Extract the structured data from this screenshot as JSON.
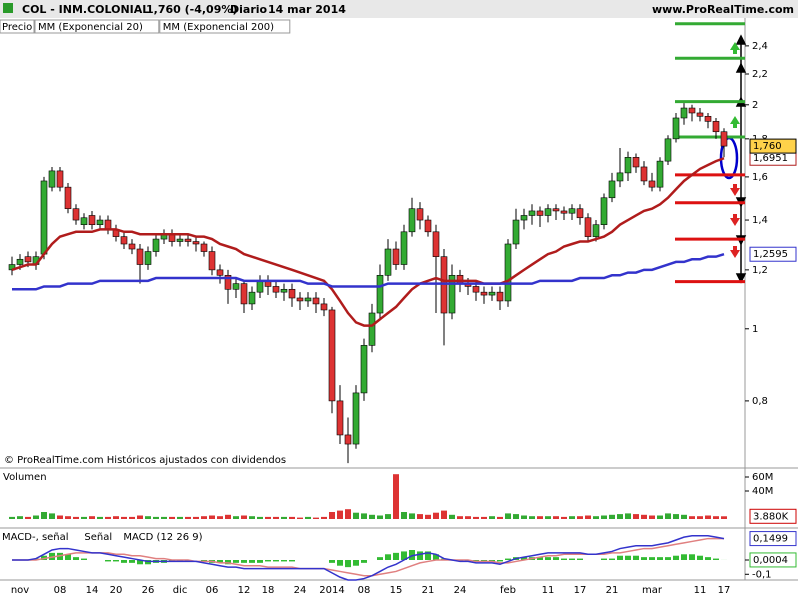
{
  "header": {
    "symbol": "COL - INM.COLONIAL",
    "quote": "1,760 (-4,09%)",
    "period": "Diario",
    "date": "14 mar 2014",
    "site": "www.ProRealTime.com",
    "footer": "© ProRealTime.com Históricos ajustados con dividendos"
  },
  "chart_data": [
    {
      "type": "candlestick",
      "log_scale": true,
      "ylim": [
        0.65,
        2.6
      ],
      "yticks": [
        {
          "value": 0.8,
          "label": "0,8"
        },
        1,
        {
          "value": 1.2,
          "label": "1,2"
        },
        {
          "value": 1.4,
          "label": "1,4"
        },
        {
          "value": 1.6,
          "label": "1,6"
        },
        {
          "value": 1.8,
          "label": "1,8"
        },
        2,
        {
          "value": 2.2,
          "label": "2,2"
        },
        {
          "value": 2.4,
          "label": "2,4"
        }
      ],
      "categories": [
        null,
        "nov",
        null,
        null,
        null,
        null,
        "08",
        null,
        null,
        null,
        "14",
        null,
        null,
        "20",
        null,
        null,
        null,
        "26",
        null,
        null,
        null,
        "dic",
        null,
        null,
        null,
        "06",
        null,
        null,
        null,
        "12",
        null,
        null,
        "18",
        null,
        null,
        null,
        "24",
        null,
        null,
        null,
        "2014",
        null,
        null,
        null,
        "08",
        null,
        null,
        null,
        "15",
        null,
        null,
        null,
        "21",
        null,
        null,
        null,
        "24",
        null,
        null,
        null,
        null,
        null,
        "feb",
        null,
        null,
        null,
        null,
        "11",
        null,
        null,
        null,
        "17",
        null,
        null,
        null,
        "21",
        null,
        null,
        null,
        null,
        "mar",
        null,
        null,
        null,
        null,
        null,
        "11",
        null,
        null,
        "17"
      ],
      "candles": {
        "name": "Precio",
        "up_color": "#33aa33",
        "down_color": "#dd3333",
        "last_label": "1,760",
        "open": [
          1.2,
          1.22,
          1.25,
          1.22,
          1.26,
          1.55,
          1.63,
          1.55,
          1.45,
          1.38,
          1.42,
          1.38,
          1.4,
          1.36,
          1.33,
          1.3,
          1.28,
          1.22,
          1.27,
          1.32,
          1.34,
          1.31,
          1.32,
          1.31,
          1.3,
          1.27,
          1.2,
          1.18,
          1.13,
          1.15,
          1.08,
          1.12,
          1.16,
          1.14,
          1.12,
          1.13,
          1.1,
          1.09,
          1.1,
          1.08,
          1.06,
          0.8,
          0.72,
          0.7,
          0.82,
          0.95,
          1.05,
          1.18,
          1.28,
          1.22,
          1.35,
          1.45,
          1.4,
          1.35,
          1.25,
          1.05,
          1.18,
          1.15,
          1.14,
          1.12,
          1.11,
          1.12,
          1.09,
          1.3,
          1.4,
          1.42,
          1.44,
          1.42,
          1.45,
          1.44,
          1.43,
          1.45,
          1.41,
          1.33,
          1.38,
          1.5,
          1.58,
          1.62,
          1.7,
          1.65,
          1.58,
          1.55,
          1.68,
          1.8,
          1.92,
          1.98,
          1.95,
          1.93,
          1.9,
          1.84
        ],
        "high": [
          1.25,
          1.26,
          1.27,
          1.27,
          1.6,
          1.65,
          1.65,
          1.57,
          1.47,
          1.43,
          1.44,
          1.42,
          1.42,
          1.38,
          1.35,
          1.32,
          1.3,
          1.29,
          1.34,
          1.36,
          1.36,
          1.34,
          1.34,
          1.33,
          1.31,
          1.29,
          1.22,
          1.2,
          1.17,
          1.16,
          1.14,
          1.18,
          1.18,
          1.16,
          1.15,
          1.15,
          1.12,
          1.12,
          1.12,
          1.1,
          1.07,
          0.84,
          0.76,
          0.84,
          0.97,
          1.08,
          1.22,
          1.32,
          1.31,
          1.38,
          1.5,
          1.48,
          1.42,
          1.38,
          1.28,
          1.22,
          1.2,
          1.17,
          1.16,
          1.14,
          1.14,
          1.14,
          1.32,
          1.45,
          1.45,
          1.47,
          1.46,
          1.47,
          1.47,
          1.46,
          1.47,
          1.47,
          1.43,
          1.4,
          1.52,
          1.62,
          1.75,
          1.73,
          1.72,
          1.68,
          1.62,
          1.7,
          1.82,
          1.95,
          2.01,
          2.0,
          1.98,
          1.95,
          1.92,
          1.86
        ],
        "low": [
          1.18,
          1.2,
          1.21,
          1.2,
          1.24,
          1.53,
          1.53,
          1.43,
          1.38,
          1.36,
          1.36,
          1.36,
          1.34,
          1.31,
          1.28,
          1.26,
          1.15,
          1.2,
          1.25,
          1.3,
          1.29,
          1.29,
          1.29,
          1.27,
          1.25,
          1.18,
          1.15,
          1.08,
          1.1,
          1.05,
          1.06,
          1.1,
          1.11,
          1.1,
          1.09,
          1.07,
          1.06,
          1.07,
          1.05,
          1.04,
          0.77,
          0.7,
          0.66,
          0.69,
          0.8,
          0.93,
          1.03,
          1.16,
          1.2,
          1.2,
          1.33,
          1.36,
          1.33,
          1.05,
          0.95,
          1.03,
          1.12,
          1.11,
          1.09,
          1.08,
          1.09,
          1.06,
          1.07,
          1.28,
          1.36,
          1.38,
          1.37,
          1.39,
          1.4,
          1.4,
          1.4,
          1.38,
          1.31,
          1.31,
          1.36,
          1.48,
          1.55,
          1.58,
          1.62,
          1.56,
          1.53,
          1.53,
          1.66,
          1.78,
          1.88,
          1.9,
          1.9,
          1.86,
          1.8,
          1.7
        ],
        "close": [
          1.22,
          1.24,
          1.23,
          1.25,
          1.58,
          1.63,
          1.55,
          1.45,
          1.4,
          1.41,
          1.38,
          1.4,
          1.36,
          1.33,
          1.3,
          1.28,
          1.22,
          1.27,
          1.32,
          1.34,
          1.31,
          1.32,
          1.31,
          1.3,
          1.27,
          1.2,
          1.18,
          1.13,
          1.15,
          1.08,
          1.12,
          1.16,
          1.14,
          1.12,
          1.13,
          1.1,
          1.09,
          1.1,
          1.08,
          1.06,
          0.8,
          0.72,
          0.7,
          0.82,
          0.95,
          1.05,
          1.18,
          1.28,
          1.22,
          1.35,
          1.45,
          1.4,
          1.35,
          1.25,
          1.05,
          1.18,
          1.15,
          1.14,
          1.12,
          1.11,
          1.12,
          1.09,
          1.3,
          1.4,
          1.42,
          1.44,
          1.42,
          1.45,
          1.44,
          1.43,
          1.45,
          1.41,
          1.33,
          1.38,
          1.5,
          1.58,
          1.62,
          1.7,
          1.65,
          1.58,
          1.55,
          1.68,
          1.8,
          1.92,
          1.98,
          1.95,
          1.93,
          1.9,
          1.84,
          1.76
        ]
      },
      "series": [
        {
          "name": "MM (Exponencial 20)",
          "color": "#b01c1c",
          "last_label": "1,6951",
          "values": [
            1.2,
            1.21,
            1.22,
            1.22,
            1.26,
            1.3,
            1.33,
            1.34,
            1.35,
            1.35,
            1.35,
            1.36,
            1.36,
            1.36,
            1.35,
            1.35,
            1.34,
            1.34,
            1.34,
            1.34,
            1.34,
            1.34,
            1.34,
            1.33,
            1.33,
            1.32,
            1.3,
            1.29,
            1.28,
            1.26,
            1.25,
            1.24,
            1.23,
            1.22,
            1.21,
            1.2,
            1.19,
            1.18,
            1.17,
            1.16,
            1.13,
            1.09,
            1.05,
            1.02,
            1.01,
            1.01,
            1.03,
            1.05,
            1.07,
            1.1,
            1.13,
            1.15,
            1.16,
            1.17,
            1.16,
            1.16,
            1.16,
            1.16,
            1.16,
            1.15,
            1.15,
            1.15,
            1.16,
            1.18,
            1.2,
            1.22,
            1.24,
            1.26,
            1.27,
            1.29,
            1.3,
            1.31,
            1.31,
            1.32,
            1.33,
            1.35,
            1.38,
            1.4,
            1.42,
            1.44,
            1.45,
            1.47,
            1.5,
            1.54,
            1.58,
            1.61,
            1.64,
            1.66,
            1.68,
            1.6951
          ]
        },
        {
          "name": "MM (Exponencial 200)",
          "color": "#3333cc",
          "last_label": "1,2595",
          "values": [
            1.13,
            1.13,
            1.13,
            1.13,
            1.14,
            1.14,
            1.14,
            1.15,
            1.15,
            1.15,
            1.15,
            1.16,
            1.16,
            1.16,
            1.16,
            1.16,
            1.16,
            1.16,
            1.17,
            1.17,
            1.17,
            1.17,
            1.17,
            1.17,
            1.17,
            1.17,
            1.17,
            1.17,
            1.17,
            1.16,
            1.16,
            1.16,
            1.16,
            1.16,
            1.16,
            1.16,
            1.16,
            1.15,
            1.15,
            1.15,
            1.14,
            1.14,
            1.14,
            1.14,
            1.14,
            1.14,
            1.14,
            1.15,
            1.15,
            1.15,
            1.15,
            1.15,
            1.15,
            1.15,
            1.15,
            1.15,
            1.15,
            1.15,
            1.15,
            1.15,
            1.15,
            1.15,
            1.15,
            1.15,
            1.15,
            1.15,
            1.16,
            1.16,
            1.16,
            1.16,
            1.16,
            1.17,
            1.17,
            1.17,
            1.17,
            1.18,
            1.18,
            1.19,
            1.19,
            1.2,
            1.2,
            1.21,
            1.22,
            1.23,
            1.23,
            1.24,
            1.24,
            1.25,
            1.25,
            1.2595
          ]
        }
      ],
      "levels": {
        "values": [
          2.57,
          2.31,
          2.02,
          1.81,
          1.61,
          1.477,
          1.32,
          1.157
        ],
        "colors": [
          "#33aa33",
          "#33aa33",
          "#33aa33",
          "#33aa33",
          "#dd1111",
          "#dd1111",
          "#dd1111",
          "#dd1111"
        ]
      }
    },
    {
      "type": "bar",
      "title": "Volumen",
      "ylim": [
        -10,
        70
      ],
      "yticks": [
        {
          "value": 60,
          "label": "60M"
        },
        {
          "value": 40,
          "label": "40M"
        }
      ],
      "up_color": "#33aa33",
      "down_color": "#dd3333",
      "last_label": "3.880K",
      "values": [
        3,
        4,
        3,
        5,
        10,
        8,
        5,
        4,
        3,
        3,
        4,
        3,
        3,
        4,
        3,
        3,
        5,
        4,
        3,
        3,
        3,
        3,
        3,
        3,
        4,
        5,
        4,
        6,
        4,
        5,
        4,
        3,
        3,
        3,
        3,
        3,
        2,
        3,
        2,
        3,
        10,
        12,
        14,
        9,
        8,
        6,
        5,
        7,
        64,
        10,
        8,
        7,
        6,
        9,
        12,
        6,
        4,
        4,
        3,
        3,
        4,
        3,
        8,
        7,
        5,
        4,
        4,
        4,
        4,
        3,
        4,
        4,
        5,
        4,
        5,
        6,
        7,
        8,
        7,
        6,
        5,
        5,
        8,
        7,
        6,
        4,
        4,
        5,
        4,
        3.88
      ]
    },
    {
      "type": "macd",
      "ylim": [
        -0.14,
        0.21
      ],
      "yticks": [
        0,
        {
          "value": -0.1,
          "label": "-0,1"
        }
      ],
      "series": [
        {
          "name": "MACD-, señal",
          "kind": "histogram",
          "color": "#33bb33",
          "last_label": "0,0004",
          "values": [
            0,
            0,
            0,
            0.01,
            0.03,
            0.05,
            0.05,
            0.04,
            0.02,
            0.01,
            0,
            0,
            -0.01,
            -0.01,
            -0.02,
            -0.02,
            -0.03,
            -0.03,
            -0.02,
            -0.02,
            -0.01,
            -0.01,
            -0.01,
            0,
            -0.01,
            -0.02,
            -0.02,
            -0.03,
            -0.02,
            -0.02,
            -0.02,
            -0.02,
            -0.01,
            -0.01,
            -0.01,
            -0.01,
            0,
            0,
            0,
            0,
            -0.02,
            -0.04,
            -0.05,
            -0.04,
            -0.02,
            0,
            0.02,
            0.04,
            0.05,
            0.06,
            0.07,
            0.06,
            0.06,
            0.04,
            0.01,
            0,
            -0.01,
            -0.01,
            -0.01,
            -0.01,
            -0.01,
            -0.01,
            0.01,
            0.02,
            0.02,
            0.02,
            0.02,
            0.02,
            0.02,
            0.01,
            0.01,
            0.01,
            0,
            0,
            0.01,
            0.01,
            0.03,
            0.03,
            0.03,
            0.02,
            0.02,
            0.02,
            0.02,
            0.03,
            0.04,
            0.04,
            0.03,
            0.02,
            0.01,
            0.0004
          ]
        },
        {
          "name": "Señal",
          "kind": "line",
          "color": "#e08080",
          "values": [
            0,
            0,
            0,
            0,
            0.01,
            0.02,
            0.03,
            0.04,
            0.05,
            0.05,
            0.05,
            0.05,
            0.05,
            0.04,
            0.04,
            0.03,
            0.03,
            0.02,
            0.01,
            0.01,
            0,
            0,
            0,
            -0.01,
            -0.01,
            -0.01,
            -0.02,
            -0.02,
            -0.03,
            -0.04,
            -0.04,
            -0.04,
            -0.05,
            -0.05,
            -0.05,
            -0.05,
            -0.06,
            -0.06,
            -0.06,
            -0.06,
            -0.07,
            -0.08,
            -0.09,
            -0.1,
            -0.11,
            -0.11,
            -0.1,
            -0.09,
            -0.08,
            -0.06,
            -0.04,
            -0.02,
            -0.01,
            0,
            0,
            0,
            0,
            0,
            -0.01,
            -0.01,
            -0.01,
            -0.02,
            -0.02,
            -0.01,
            0,
            0.01,
            0.02,
            0.03,
            0.03,
            0.04,
            0.04,
            0.04,
            0.04,
            0.04,
            0.04,
            0.05,
            0.05,
            0.06,
            0.07,
            0.08,
            0.08,
            0.09,
            0.1,
            0.11,
            0.12,
            0.13,
            0.14,
            0.15,
            0.15,
            0.1495
          ]
        },
        {
          "name": "MACD (12 26 9)",
          "kind": "line",
          "color": "#3333cc",
          "last_label": "0,1499",
          "values": [
            0,
            0,
            0,
            0.01,
            0.04,
            0.07,
            0.08,
            0.08,
            0.07,
            0.06,
            0.05,
            0.05,
            0.04,
            0.03,
            0.02,
            0.01,
            0,
            -0.01,
            -0.01,
            -0.01,
            -0.01,
            -0.01,
            -0.01,
            -0.01,
            -0.02,
            -0.03,
            -0.04,
            -0.05,
            -0.05,
            -0.06,
            -0.06,
            -0.06,
            -0.06,
            -0.06,
            -0.06,
            -0.06,
            -0.06,
            -0.06,
            -0.06,
            -0.06,
            -0.09,
            -0.12,
            -0.14,
            -0.14,
            -0.13,
            -0.11,
            -0.08,
            -0.05,
            -0.03,
            0,
            0.03,
            0.04,
            0.05,
            0.04,
            0.01,
            0,
            -0.01,
            -0.01,
            -0.02,
            -0.02,
            -0.02,
            -0.03,
            -0.01,
            0.01,
            0.02,
            0.03,
            0.04,
            0.05,
            0.05,
            0.05,
            0.05,
            0.05,
            0.04,
            0.04,
            0.05,
            0.06,
            0.08,
            0.09,
            0.1,
            0.1,
            0.1,
            0.11,
            0.12,
            0.14,
            0.16,
            0.17,
            0.17,
            0.17,
            0.16,
            0.1499
          ]
        }
      ]
    }
  ]
}
